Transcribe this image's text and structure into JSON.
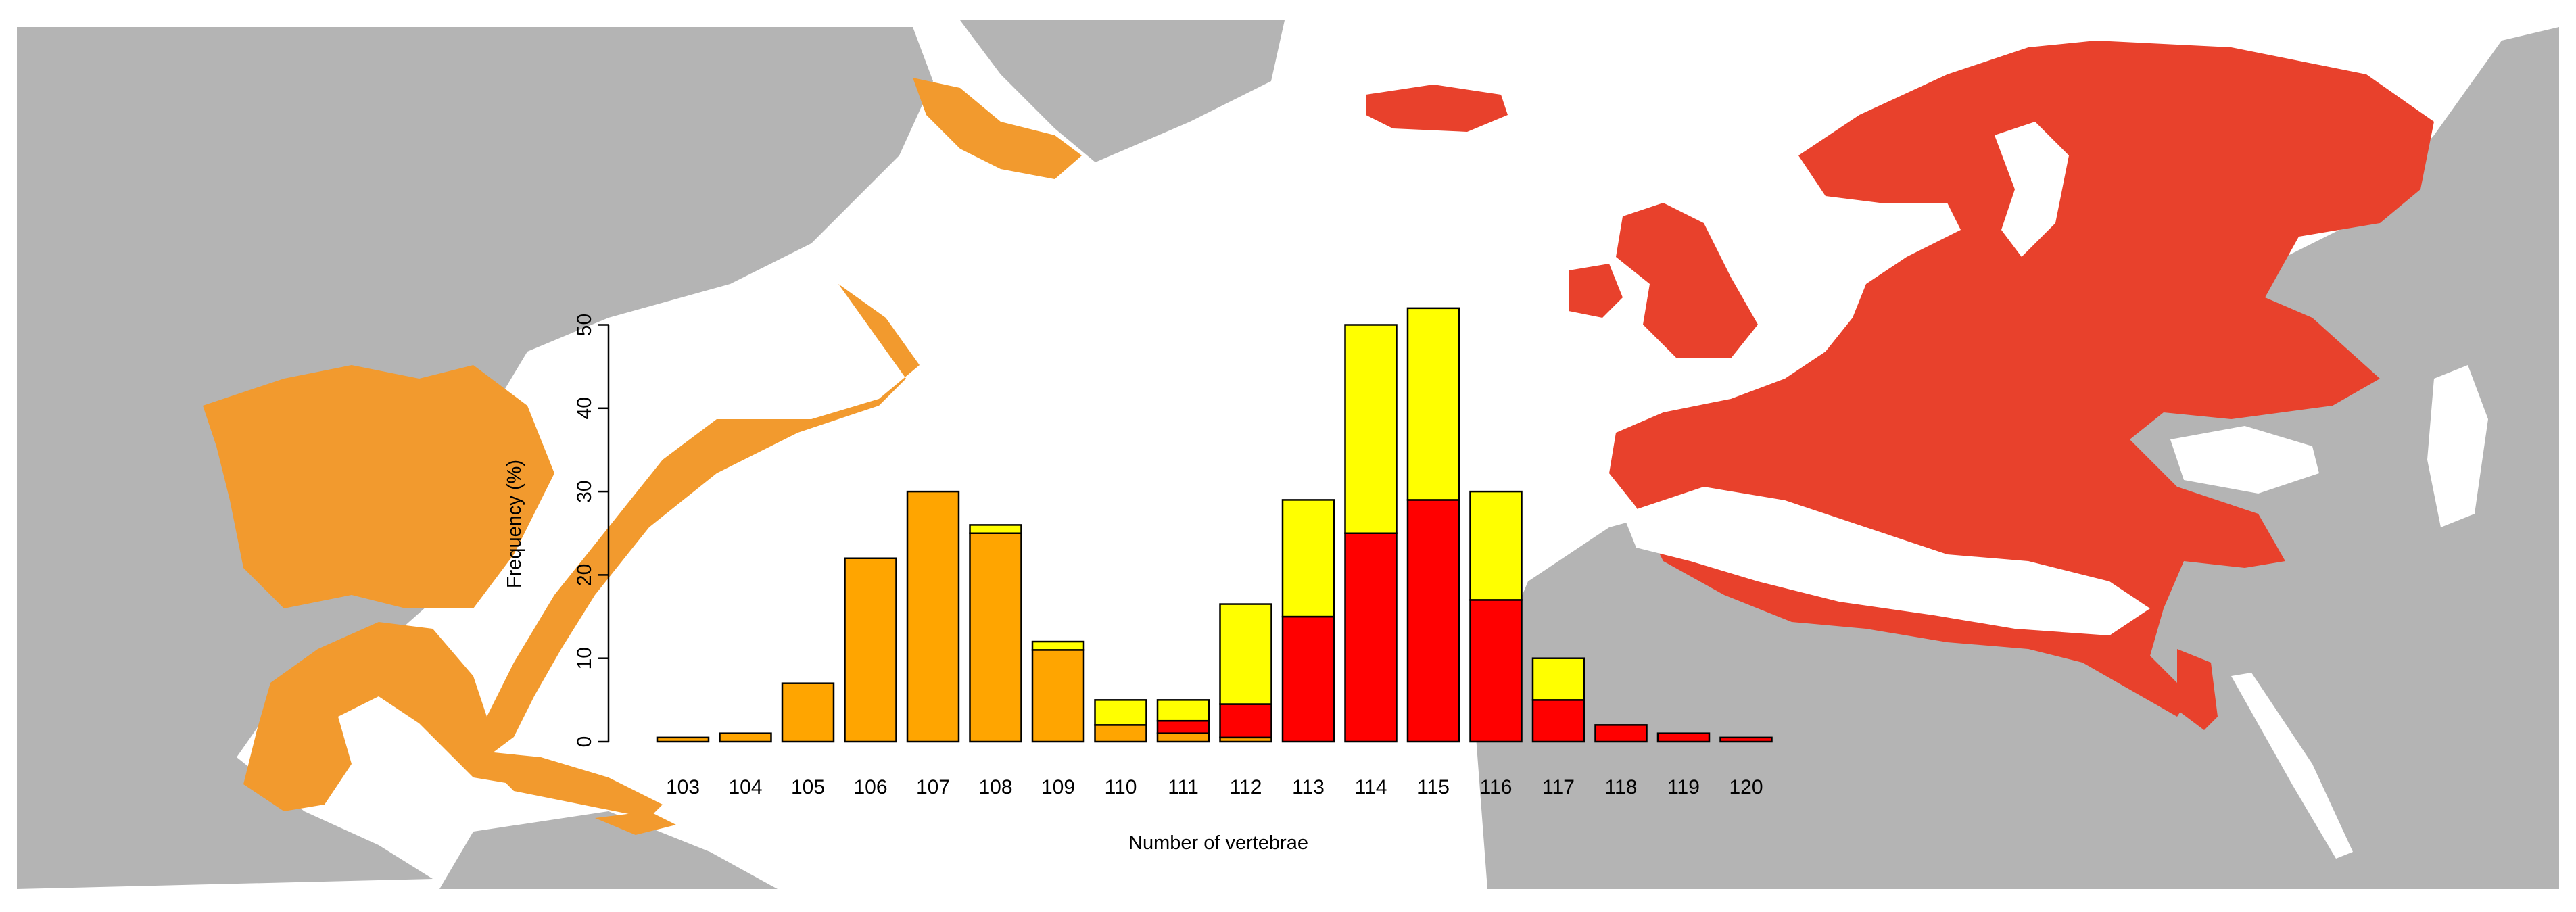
{
  "colors": {
    "land": "#b4b4b4",
    "sea": "#ffffff",
    "american_range": "#f29a2e",
    "european_range": "#e8412c",
    "bar_american": "#ffa500",
    "bar_european": "#ff0000",
    "bar_mixed": "#ffff00",
    "bar_border": "#000000"
  },
  "chart_data": {
    "type": "bar",
    "stacked": true,
    "xlabel": "Number of vertebrae",
    "ylabel": "Frequency (%)",
    "ylim": [
      0,
      52
    ],
    "yticks": [
      0,
      10,
      20,
      30,
      40,
      50
    ],
    "categories": [
      "103",
      "104",
      "105",
      "106",
      "107",
      "108",
      "109",
      "110",
      "111",
      "112",
      "113",
      "114",
      "115",
      "116",
      "117",
      "118",
      "119",
      "120"
    ],
    "series": [
      {
        "values": [
          0.5,
          1,
          7,
          22,
          30,
          25,
          11,
          2,
          1,
          0.5,
          0,
          0,
          0,
          0,
          0,
          0,
          0,
          0
        ],
        "color": "#ffa500"
      },
      {
        "values": [
          0,
          0,
          0,
          0,
          0,
          0,
          0,
          0,
          1.5,
          4,
          15,
          25,
          29,
          17,
          5,
          2,
          1,
          0.5
        ],
        "color": "#ff0000"
      },
      {
        "values": [
          0,
          0,
          0,
          0,
          0,
          1,
          1,
          3,
          2.5,
          12,
          14,
          25,
          23,
          13,
          5,
          0,
          0,
          0
        ],
        "color": "#ffff00"
      }
    ],
    "grid": false,
    "legend": "none"
  }
}
